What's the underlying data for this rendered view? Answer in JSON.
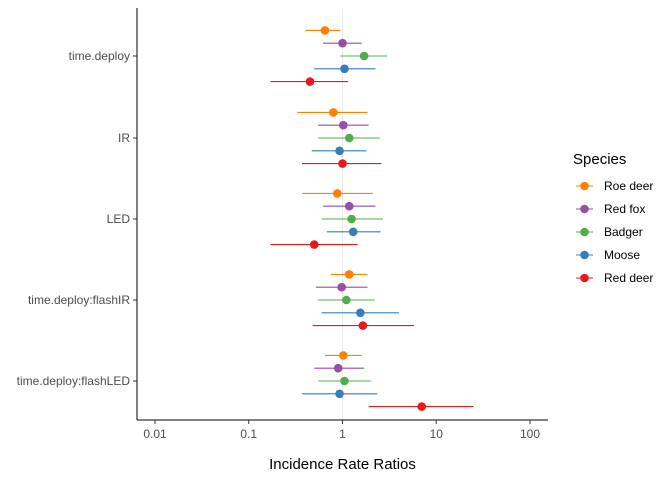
{
  "chart_data": {
    "type": "forest",
    "xlabel": "Incidence Rate Ratios",
    "ylabel": "",
    "x_scale": "log10",
    "xlim": [
      0.01,
      150
    ],
    "x_ticks": [
      0.01,
      0.1,
      1,
      10,
      100
    ],
    "x_tick_labels": [
      "0.01",
      "0.1",
      "1",
      "10",
      "100"
    ],
    "reference_line": 1,
    "grid": false,
    "legend_position": "right",
    "legend_title": "Species",
    "categories": [
      "time.deploy",
      "IR",
      "LED",
      "time.deploy:flashIR",
      "time.deploy:flashLED"
    ],
    "series": [
      {
        "name": "Roe deer",
        "color": "#FF7F00",
        "points": [
          {
            "est": 0.65,
            "lo": 0.4,
            "hi": 0.95
          },
          {
            "est": 0.8,
            "lo": 0.33,
            "hi": 1.85
          },
          {
            "est": 0.88,
            "lo": 0.37,
            "hi": 2.1
          },
          {
            "est": 1.18,
            "lo": 0.75,
            "hi": 1.85
          },
          {
            "est": 1.02,
            "lo": 0.65,
            "hi": 1.6
          }
        ]
      },
      {
        "name": "Red fox",
        "color": "#984EA3",
        "points": [
          {
            "est": 1.0,
            "lo": 0.62,
            "hi": 1.6
          },
          {
            "est": 1.02,
            "lo": 0.55,
            "hi": 1.9
          },
          {
            "est": 1.18,
            "lo": 0.62,
            "hi": 2.25
          },
          {
            "est": 0.98,
            "lo": 0.52,
            "hi": 1.85
          },
          {
            "est": 0.9,
            "lo": 0.5,
            "hi": 1.7
          }
        ]
      },
      {
        "name": "Badger",
        "color": "#4DAF4A",
        "points": [
          {
            "est": 1.7,
            "lo": 0.95,
            "hi": 3.0
          },
          {
            "est": 1.18,
            "lo": 0.55,
            "hi": 2.5
          },
          {
            "est": 1.25,
            "lo": 0.6,
            "hi": 2.7
          },
          {
            "est": 1.1,
            "lo": 0.55,
            "hi": 2.2
          },
          {
            "est": 1.05,
            "lo": 0.55,
            "hi": 2.0
          }
        ]
      },
      {
        "name": "Moose",
        "color": "#377EB8",
        "points": [
          {
            "est": 1.05,
            "lo": 0.5,
            "hi": 2.25
          },
          {
            "est": 0.93,
            "lo": 0.47,
            "hi": 1.8
          },
          {
            "est": 1.3,
            "lo": 0.68,
            "hi": 2.55
          },
          {
            "est": 1.55,
            "lo": 0.6,
            "hi": 4.0
          },
          {
            "est": 0.93,
            "lo": 0.37,
            "hi": 2.35
          }
        ]
      },
      {
        "name": "Red deer",
        "color": "#E41A1C",
        "points": [
          {
            "est": 0.45,
            "lo": 0.17,
            "hi": 1.15
          },
          {
            "est": 1.0,
            "lo": 0.37,
            "hi": 2.6
          },
          {
            "est": 0.5,
            "lo": 0.17,
            "hi": 1.45
          },
          {
            "est": 1.65,
            "lo": 0.48,
            "hi": 5.8
          },
          {
            "est": 7.0,
            "lo": 1.9,
            "hi": 25.0
          }
        ]
      }
    ]
  }
}
